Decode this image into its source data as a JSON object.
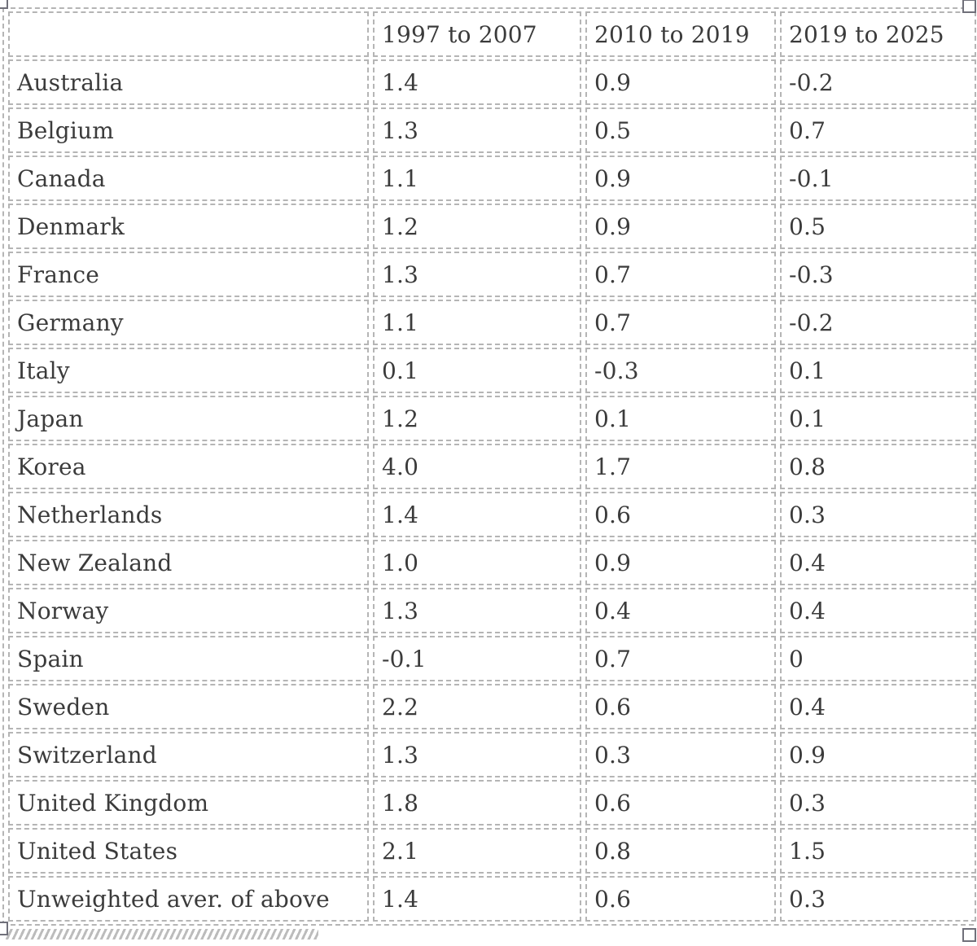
{
  "table": {
    "header": [
      "",
      "1997 to 2007",
      "2010 to 2019",
      "2019 to 2025"
    ],
    "rows": [
      {
        "label": "Australia",
        "values": [
          "1.4",
          "0.9",
          "-0.2"
        ]
      },
      {
        "label": "Belgium",
        "values": [
          "1.3",
          "0.5",
          "0.7"
        ]
      },
      {
        "label": "Canada",
        "values": [
          "1.1",
          "0.9",
          "-0.1"
        ]
      },
      {
        "label": "Denmark",
        "values": [
          "1.2",
          "0.9",
          "0.5"
        ]
      },
      {
        "label": "France",
        "values": [
          "1.3",
          "0.7",
          "-0.3"
        ]
      },
      {
        "label": "Germany",
        "values": [
          "1.1",
          "0.7",
          "-0.2"
        ]
      },
      {
        "label": "Italy",
        "values": [
          "0.1",
          "-0.3",
          "0.1"
        ]
      },
      {
        "label": "Japan",
        "values": [
          "1.2",
          "0.1",
          "0.1"
        ]
      },
      {
        "label": "Korea",
        "values": [
          "4.0",
          "1.7",
          "0.8"
        ]
      },
      {
        "label": "Netherlands",
        "values": [
          "1.4",
          "0.6",
          "0.3"
        ]
      },
      {
        "label": "New Zealand",
        "values": [
          "1.0",
          "0.9",
          "0.4"
        ]
      },
      {
        "label": "Norway",
        "values": [
          "1.3",
          "0.4",
          "0.4"
        ]
      },
      {
        "label": "Spain",
        "values": [
          "-0.1",
          "0.7",
          "0"
        ]
      },
      {
        "label": "Sweden",
        "values": [
          "2.2",
          "0.6",
          "0.4"
        ]
      },
      {
        "label": "Switzerland",
        "values": [
          "1.3",
          "0.3",
          "0.9"
        ]
      },
      {
        "label": "United Kingdom",
        "values": [
          "1.8",
          "0.6",
          "0.3"
        ]
      },
      {
        "label": "United States",
        "values": [
          "2.1",
          "0.8",
          "1.5"
        ]
      },
      {
        "label": "Unweighted aver. of above",
        "values": [
          "1.4",
          "0.6",
          "0.3"
        ]
      }
    ]
  },
  "colors": {
    "text": "#3b3b3b",
    "cell_border": "#b5b5b5",
    "handle_border": "#70707a",
    "hatch": "#bcbcbc"
  }
}
